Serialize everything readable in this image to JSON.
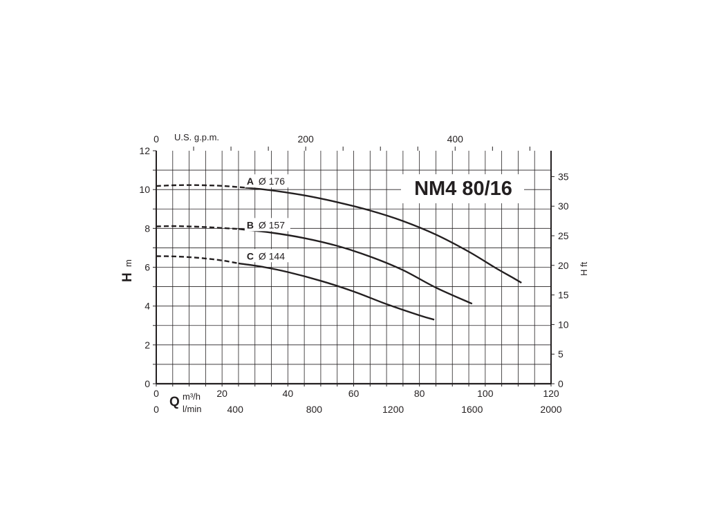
{
  "chart_data": {
    "type": "line",
    "title": "NM4 80/16",
    "x_axis": {
      "label": "Q",
      "unit": "m³/h",
      "min": 0,
      "max": 120,
      "ticks": [
        0,
        20,
        40,
        60,
        80,
        100,
        120
      ]
    },
    "x_axis_secondary": {
      "unit": "l/min",
      "min": 0,
      "max": 2000,
      "ticks": [
        0,
        400,
        800,
        1200,
        1600,
        2000
      ]
    },
    "x_axis_top": {
      "unit": "U.S. g.p.m.",
      "ticks": [
        0,
        200,
        400
      ]
    },
    "y_axis": {
      "label": "H",
      "unit": "m",
      "min": 0,
      "max": 12,
      "ticks": [
        0,
        2,
        4,
        6,
        8,
        10,
        12
      ]
    },
    "y_axis_right": {
      "label": "H ft",
      "ticks": [
        0,
        5,
        10,
        15,
        20,
        25,
        30,
        35
      ]
    },
    "grid": true,
    "series": [
      {
        "name": "A",
        "diameter": "Ø 176",
        "dashed_until_x": 27,
        "points": [
          [
            0,
            10.18
          ],
          [
            5,
            10.22
          ],
          [
            10,
            10.23
          ],
          [
            15,
            10.22
          ],
          [
            20,
            10.19
          ],
          [
            27,
            10.1
          ],
          [
            35,
            9.96
          ],
          [
            45,
            9.7
          ],
          [
            55,
            9.35
          ],
          [
            65,
            8.92
          ],
          [
            75,
            8.38
          ],
          [
            85,
            7.68
          ],
          [
            95,
            6.8
          ],
          [
            103,
            5.98
          ],
          [
            109,
            5.4
          ],
          [
            111,
            5.2
          ],
          [
            108,
            5.88
          ]
        ]
      },
      {
        "name": "B",
        "diameter": "Ø 157",
        "dashed_until_x": 25,
        "points": [
          [
            0,
            8.1
          ],
          [
            5,
            8.12
          ],
          [
            10,
            8.1
          ],
          [
            15,
            8.07
          ],
          [
            20,
            8.02
          ],
          [
            25,
            7.97
          ],
          [
            35,
            7.78
          ],
          [
            45,
            7.5
          ],
          [
            55,
            7.1
          ],
          [
            65,
            6.55
          ],
          [
            75,
            5.85
          ],
          [
            85,
            4.95
          ],
          [
            96,
            4.12
          ]
        ]
      },
      {
        "name": "C",
        "diameter": "Ø 144",
        "dashed_until_x": 25,
        "points": [
          [
            0,
            6.57
          ],
          [
            5,
            6.56
          ],
          [
            10,
            6.52
          ],
          [
            15,
            6.45
          ],
          [
            20,
            6.35
          ],
          [
            25,
            6.2
          ],
          [
            32,
            6.03
          ],
          [
            40,
            5.75
          ],
          [
            50,
            5.3
          ],
          [
            60,
            4.75
          ],
          [
            70,
            4.1
          ],
          [
            80,
            3.52
          ],
          [
            84.5,
            3.3
          ]
        ]
      }
    ]
  }
}
